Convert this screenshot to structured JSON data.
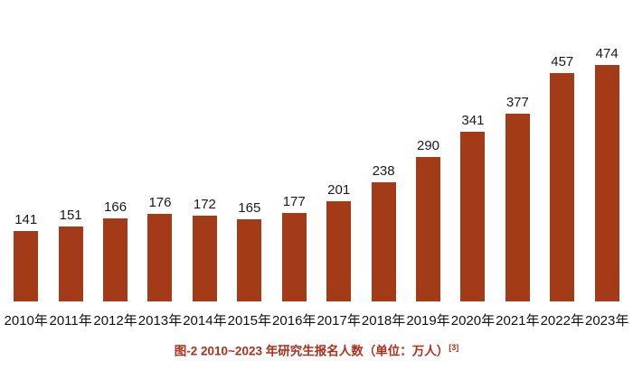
{
  "chart_data": {
    "type": "bar",
    "categories": [
      "2010年",
      "2011年",
      "2012年",
      "2013年",
      "2014年",
      "2015年",
      "2016年",
      "2017年",
      "2018年",
      "2019年",
      "2020年",
      "2021年",
      "2022年",
      "2023年"
    ],
    "values": [
      141,
      151,
      166,
      176,
      172,
      165,
      177,
      201,
      238,
      290,
      341,
      377,
      457,
      474
    ],
    "title": "图-2 2010~2023 年研究生报名人数（单位：万人）",
    "title_superscript": "[3]",
    "xlabel": "",
    "ylabel": "",
    "ylim": [
      0,
      474
    ],
    "grid": false,
    "legend": false,
    "colors": {
      "bar": "#A33A18",
      "value_label": "#1a1a1a",
      "axis_label": "#111111",
      "caption": "#B02F1B",
      "background": "#ffffff"
    }
  }
}
